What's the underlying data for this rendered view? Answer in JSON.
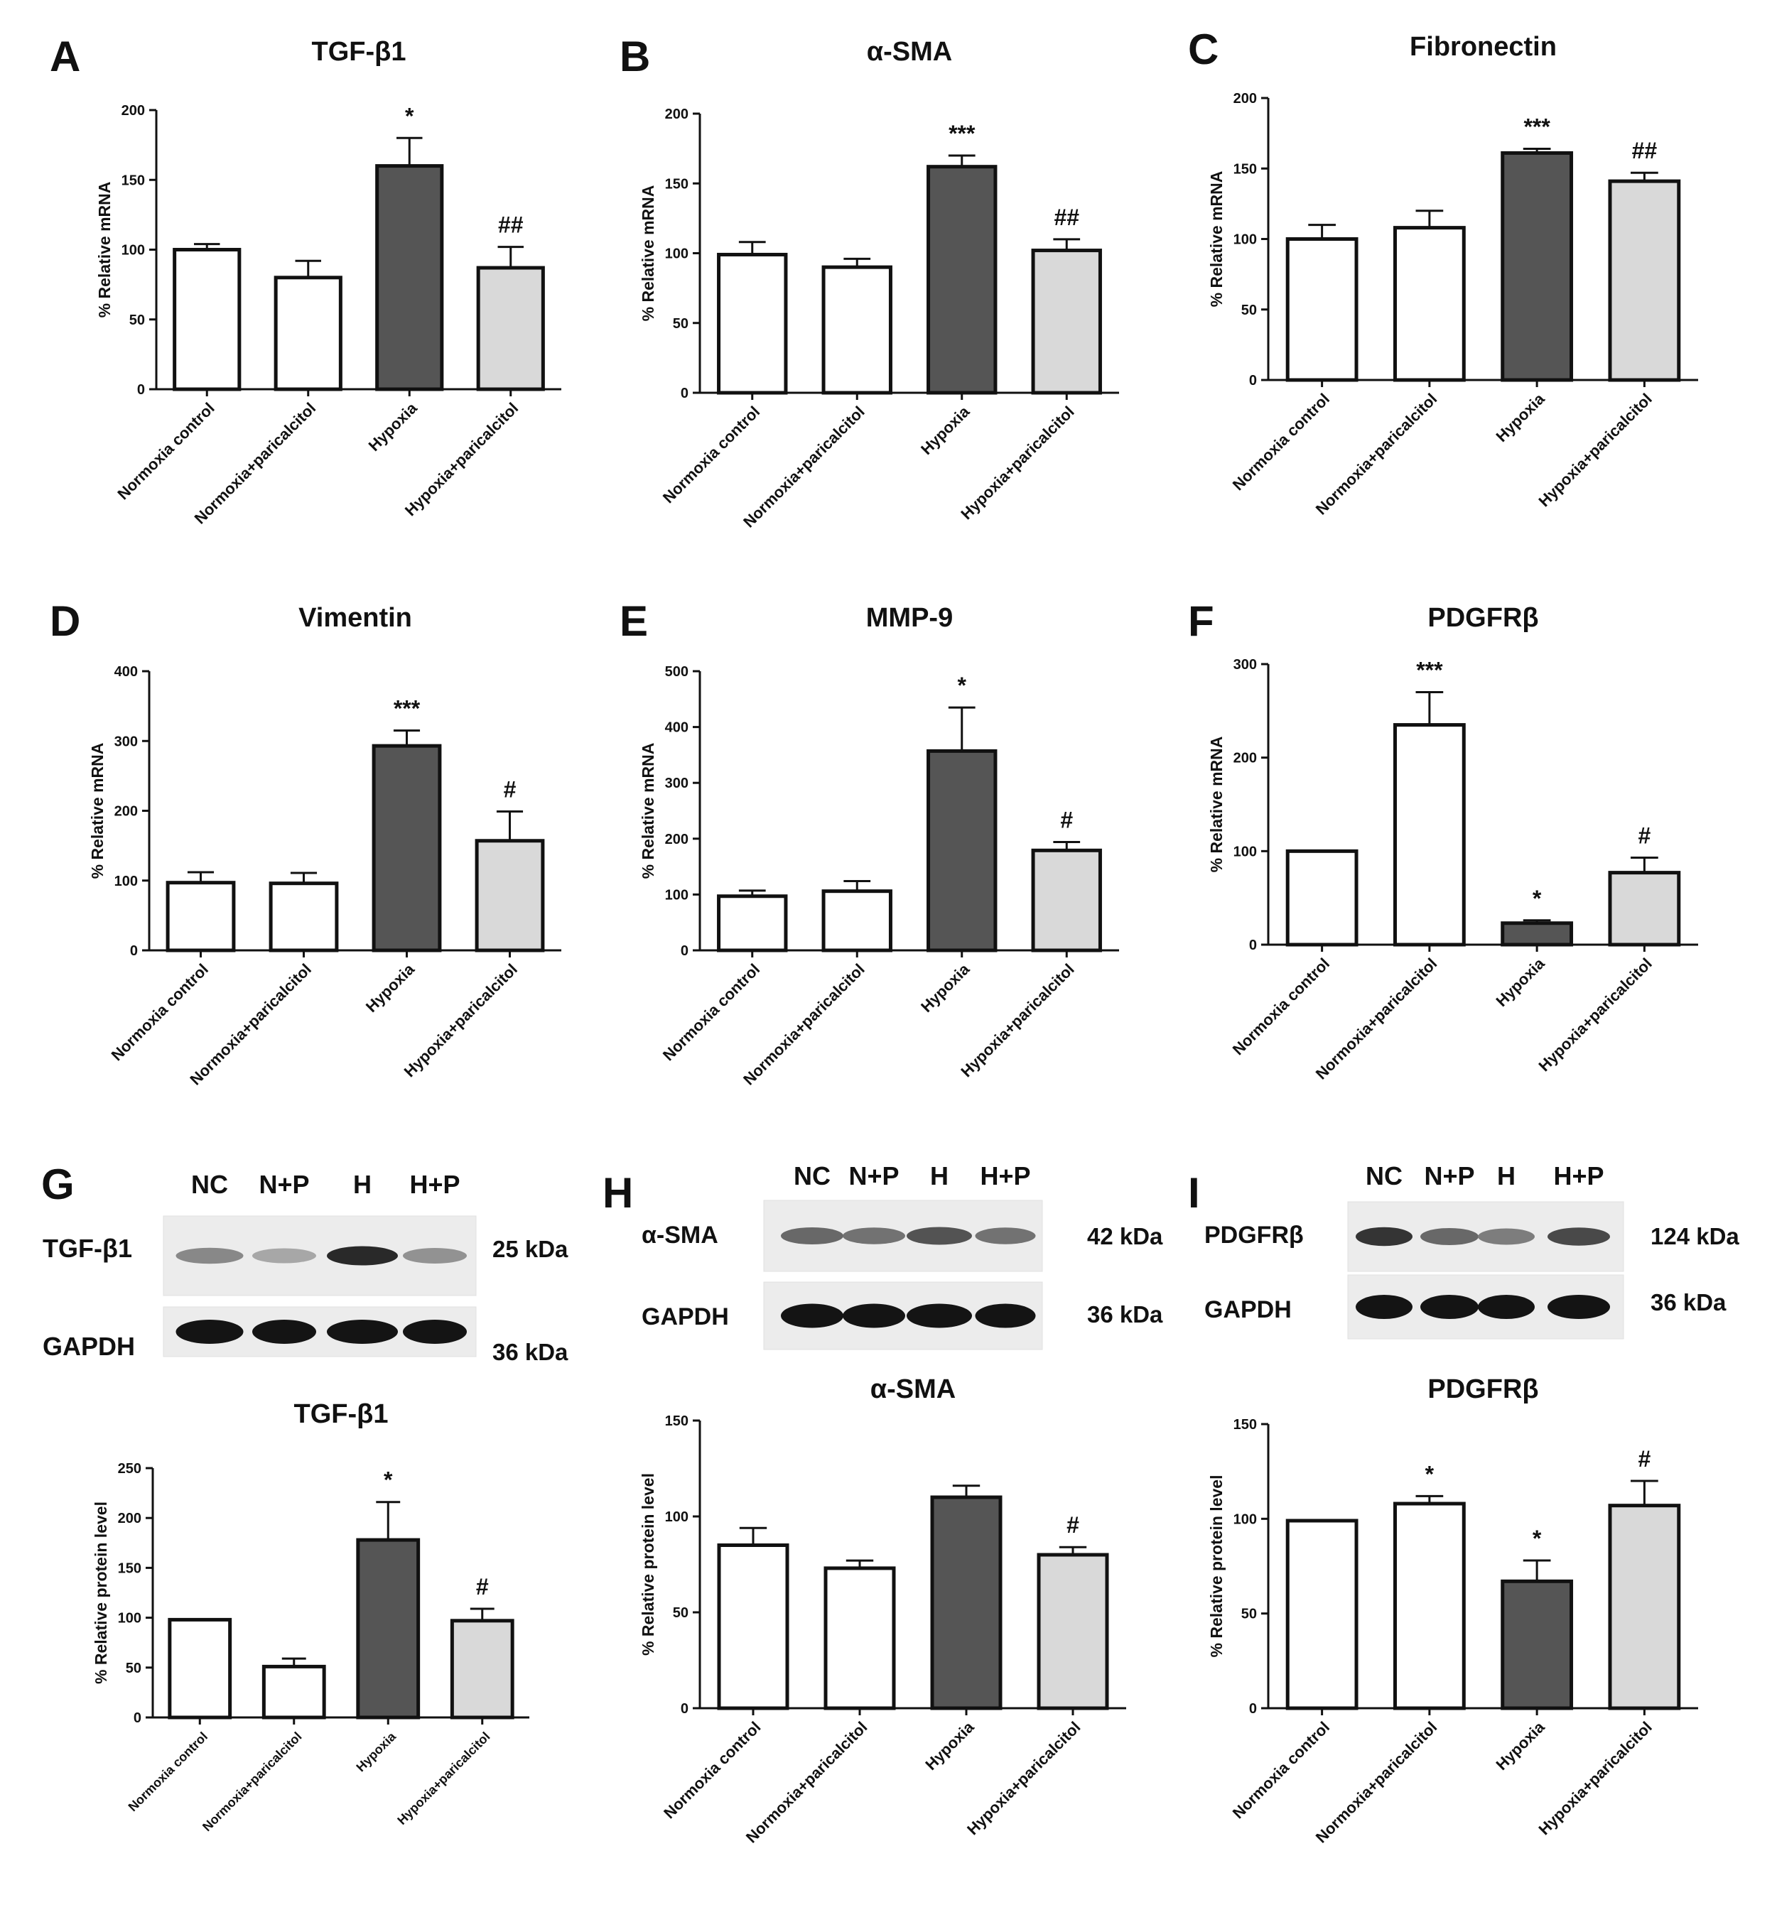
{
  "categories": [
    "Normoxia control",
    "Normoxia+paricalcitol",
    "Hypoxia",
    "Hypoxia+paricalcitol"
  ],
  "colors": {
    "white_bar": "#ffffff",
    "dark_bar": "#555555",
    "light_bar": "#d9d9d9",
    "stroke": "#111111"
  },
  "chart_data": [
    {
      "id": "A",
      "type": "bar",
      "title": "TGF-β1",
      "ylabel": "% Relative mRNA",
      "ylim": [
        0,
        200
      ],
      "yticks": [
        0,
        50,
        100,
        150,
        200
      ],
      "tick_labels": [
        "0",
        "50",
        "100",
        "150",
        "200"
      ],
      "values": [
        100,
        80,
        160,
        87
      ],
      "errors": [
        4,
        12,
        20,
        15
      ],
      "annotations": [
        "",
        "",
        "*",
        "##"
      ]
    },
    {
      "id": "B",
      "type": "bar",
      "title": "α-SMA",
      "ylabel": "% Relative mRNA",
      "ylim": [
        0,
        200
      ],
      "yticks": [
        0,
        50,
        100,
        150,
        200
      ],
      "tick_labels": [
        "0",
        "50",
        "100",
        "150",
        "200"
      ],
      "values": [
        99,
        90,
        162,
        102
      ],
      "errors": [
        9,
        6,
        8,
        8
      ],
      "annotations": [
        "",
        "",
        "***",
        "##"
      ]
    },
    {
      "id": "C",
      "type": "bar",
      "title": "Fibronectin",
      "ylabel": "% Relative mRNA",
      "ylim": [
        0,
        200
      ],
      "yticks": [
        0,
        50,
        100,
        150,
        200
      ],
      "tick_labels": [
        "0",
        "50",
        "100",
        "150",
        "200"
      ],
      "values": [
        100,
        108,
        161,
        141
      ],
      "errors": [
        10,
        12,
        3,
        6
      ],
      "annotations": [
        "",
        "",
        "***",
        "##"
      ]
    },
    {
      "id": "D",
      "type": "bar",
      "title": "Vimentin",
      "ylabel": "% Relative mRNA",
      "ylim": [
        0,
        400
      ],
      "yticks": [
        0,
        100,
        200,
        300,
        400
      ],
      "tick_labels": [
        "0",
        "100",
        "200",
        "300",
        "400"
      ],
      "values": [
        97,
        96,
        293,
        157
      ],
      "errors": [
        15,
        15,
        22,
        42
      ],
      "annotations": [
        "",
        "",
        "***",
        "#"
      ]
    },
    {
      "id": "E",
      "type": "bar",
      "title": "MMP-9",
      "ylabel": "% Relative mRNA",
      "ylim": [
        0,
        500
      ],
      "yticks": [
        0,
        100,
        200,
        300,
        400,
        500
      ],
      "tick_labels": [
        "0",
        "100",
        "200",
        "300",
        "400",
        "500"
      ],
      "values": [
        97,
        106,
        357,
        179
      ],
      "errors": [
        10,
        18,
        78,
        15
      ],
      "annotations": [
        "",
        "",
        "*",
        "#"
      ]
    },
    {
      "id": "F",
      "type": "bar",
      "title": "PDGFRβ",
      "ylabel": "% Relative mRNA",
      "ylim": [
        0,
        300
      ],
      "yticks": [
        0,
        100,
        200,
        300
      ],
      "tick_labels": [
        "0",
        "100",
        "200",
        "300"
      ],
      "values": [
        100,
        235,
        23,
        77
      ],
      "errors": [
        0,
        35,
        3,
        16
      ],
      "annotations": [
        "",
        "***",
        "*",
        "#"
      ]
    },
    {
      "id": "G",
      "type": "bar",
      "title": "TGF-β1",
      "ylabel": "% Relative protein level",
      "ylim": [
        0,
        250
      ],
      "yticks": [
        0,
        50,
        100,
        150,
        200,
        250
      ],
      "tick_labels": [
        "0",
        "50",
        "100",
        "150",
        "200",
        "250"
      ],
      "values": [
        98,
        51,
        178,
        97
      ],
      "errors": [
        0,
        8,
        38,
        12
      ],
      "annotations": [
        "",
        "",
        "*",
        "#"
      ]
    },
    {
      "id": "H",
      "type": "bar",
      "title": "α-SMA",
      "ylabel": "% Relative protein level",
      "ylim": [
        0,
        150
      ],
      "yticks": [
        0,
        50,
        100,
        150
      ],
      "tick_labels": [
        "0",
        "50",
        "100",
        "150"
      ],
      "values": [
        85,
        73,
        110,
        80
      ],
      "errors": [
        9,
        4,
        6,
        4
      ],
      "annotations": [
        "",
        "",
        "",
        "#"
      ]
    },
    {
      "id": "I",
      "type": "bar",
      "title": "PDGFRβ",
      "ylabel": "% Relative protein level",
      "ylim": [
        0,
        150
      ],
      "yticks": [
        0,
        50,
        100,
        150
      ],
      "tick_labels": [
        "0",
        "50",
        "100",
        "150"
      ],
      "values": [
        99,
        108,
        67,
        107
      ],
      "errors": [
        0,
        4,
        11,
        13
      ],
      "annotations": [
        "",
        "*",
        "*",
        "#"
      ]
    }
  ],
  "blots": [
    {
      "id": "G",
      "lanes": [
        "NC",
        "N+P",
        "H",
        "H+P"
      ],
      "rows": [
        {
          "label": "TGF-β1",
          "kda": "25 kDa",
          "intensity": [
            0.45,
            0.3,
            0.9,
            0.4
          ]
        },
        {
          "label": "GAPDH",
          "kda": "36 kDa",
          "intensity": [
            1,
            1,
            1,
            1
          ]
        }
      ]
    },
    {
      "id": "H",
      "lanes": [
        "NC",
        "N+P",
        "H",
        "H+P"
      ],
      "rows": [
        {
          "label": "α-SMA",
          "kda": "42 kDa",
          "intensity": [
            0.6,
            0.55,
            0.7,
            0.55
          ]
        },
        {
          "label": "GAPDH",
          "kda": "36 kDa",
          "intensity": [
            1,
            1,
            1,
            1
          ]
        }
      ]
    },
    {
      "id": "I",
      "lanes": [
        "NC",
        "N+P",
        "H",
        "H+P"
      ],
      "rows": [
        {
          "label": "PDGFRβ",
          "kda": "124 kDa",
          "intensity": [
            0.85,
            0.6,
            0.5,
            0.75
          ]
        },
        {
          "label": "GAPDH",
          "kda": "36 kDa",
          "intensity": [
            1,
            1,
            1,
            1
          ]
        }
      ]
    }
  ]
}
